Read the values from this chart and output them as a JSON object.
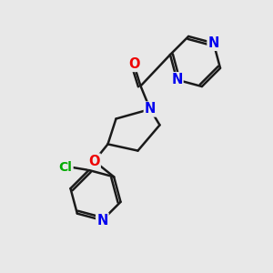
{
  "background_color": "#e8e8e8",
  "bond_color": "#1a1a1a",
  "bond_width": 1.8,
  "atom_colors": {
    "N": "#0000ee",
    "O": "#ee0000",
    "Cl": "#00aa00",
    "C": "#1a1a1a"
  },
  "font_size": 10.5
}
